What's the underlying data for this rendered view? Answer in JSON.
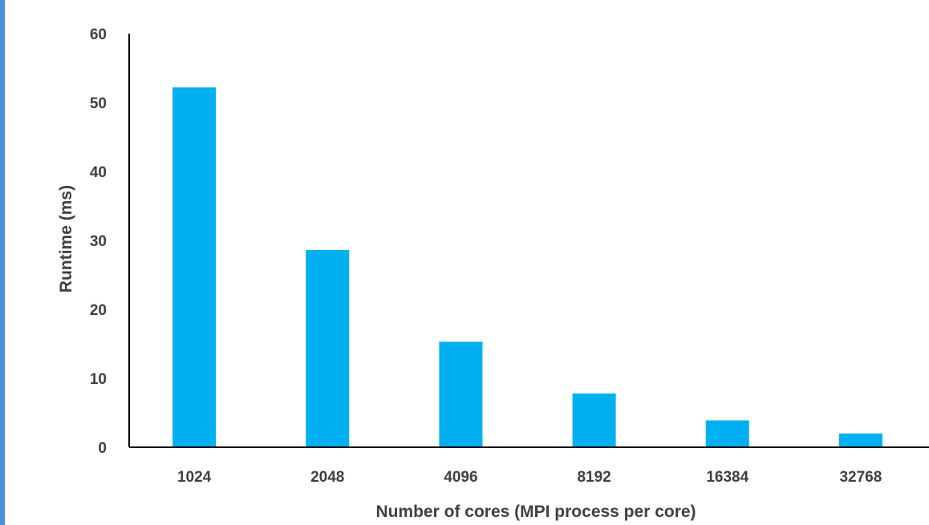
{
  "chart_data": {
    "type": "bar",
    "title": "",
    "xlabel": "Number of cores (MPI process per core)",
    "ylabel": "Runtime (ms)",
    "categories": [
      "1024",
      "2048",
      "4096",
      "8192",
      "16384",
      "32768"
    ],
    "values": [
      52.2,
      28.6,
      15.3,
      7.8,
      3.9,
      2.0
    ],
    "ylim": [
      0,
      60
    ],
    "yticks": [
      "0",
      "10",
      "20",
      "30",
      "40",
      "50",
      "60"
    ],
    "grid": false,
    "legend": "none",
    "bar_color": "#00b0f0",
    "axis_color": "#000000",
    "text_color": "#404040"
  },
  "page": {
    "accent_color": "#4a90d9"
  }
}
